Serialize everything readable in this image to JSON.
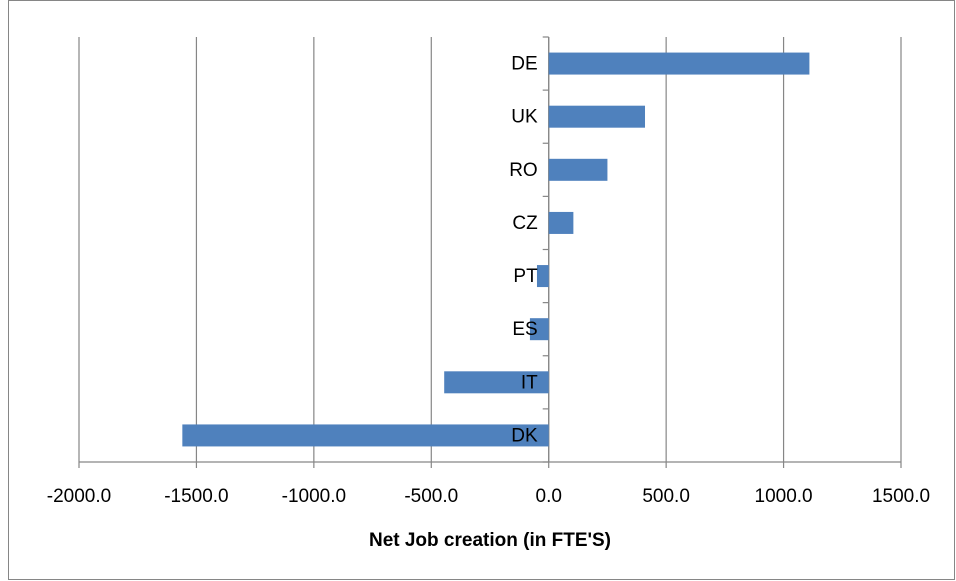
{
  "chart_data": {
    "type": "hbar",
    "categories": [
      "DE",
      "UK",
      "RO",
      "CZ",
      "PT",
      "ES",
      "IT",
      "DK"
    ],
    "values": [
      1110,
      410,
      250,
      105,
      -50,
      -80,
      -445,
      -1560
    ],
    "color": "#4f81bd",
    "xlim": [
      -2000,
      1500
    ],
    "xticks": [
      {
        "value": -2000,
        "label": "-2000.0"
      },
      {
        "value": -1500,
        "label": "-1500.0"
      },
      {
        "value": -1000,
        "label": "-1000.0"
      },
      {
        "value": -500,
        "label": "-500.0"
      },
      {
        "value": 0,
        "label": "0.0"
      },
      {
        "value": 500,
        "label": "500.0"
      },
      {
        "value": 1000,
        "label": "1000.0"
      },
      {
        "value": 1500,
        "label": "1500.0"
      }
    ],
    "xlabel": "Net Job creation (in FTE'S)",
    "grid": true
  }
}
